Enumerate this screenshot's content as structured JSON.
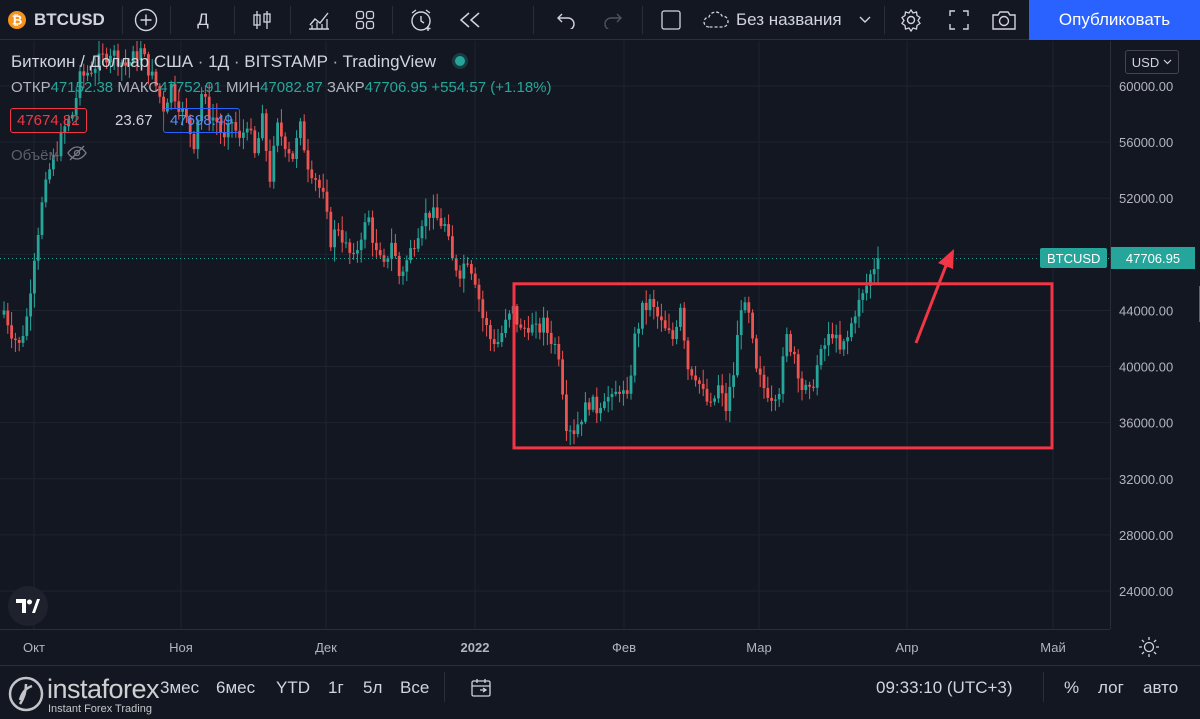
{
  "toolbar": {
    "symbol": "BTCUSD",
    "interval": "Д",
    "layout_name": "Без названия",
    "publish_label": "Опубликовать"
  },
  "legend": {
    "title": "Биткоин / Доллар США",
    "interval": "1Д",
    "exchange": "BITSTAMP",
    "source": "TradingView",
    "open_label": "ОТКР",
    "open": "47152.38",
    "high_label": "МАКС",
    "high": "47752.91",
    "low_label": "МИН",
    "low": "47082.87",
    "close_label": "ЗАКР",
    "close": "47706.95",
    "change": "+554.57 (+1.18%)",
    "bid": "47674.82",
    "spread": "23.67",
    "ask": "47698.49",
    "volume_label": "Объём"
  },
  "price_axis": {
    "currency": "USD",
    "ticks": [
      "60000.00",
      "56000.00",
      "52000.00",
      "48000.00",
      "44000.00",
      "40000.00",
      "36000.00",
      "32000.00",
      "28000.00",
      "24000.00"
    ],
    "last_symbol": "BTCUSD",
    "last_price": "47706.95"
  },
  "time_axis": {
    "labels": [
      "Окт",
      "Ноя",
      "Дек",
      "2022",
      "Фев",
      "Мар",
      "Апр",
      "Май"
    ]
  },
  "bottom_bar": {
    "ranges": [
      "3мес",
      "6мес",
      "YTD",
      "1г",
      "5л",
      "Все"
    ],
    "time": "09:33:10 (UTC+3)",
    "percent": "%",
    "log": "лог",
    "auto": "авто",
    "watermark": "instaforex",
    "watermark_sub": "Instant Forex Trading"
  },
  "colors": {
    "up": "#26a69a",
    "down": "#ef5350",
    "annotation": "#f23645",
    "accent": "#2962ff",
    "symbol_badge": "#f7931a"
  },
  "chart_data": {
    "type": "candlestick",
    "ylim": [
      21000,
      63000
    ],
    "last_price": 47706.95,
    "annotation": {
      "type": "rectangle",
      "price_low": 34200,
      "price_high": 45900,
      "arrow": "up"
    },
    "series": [
      {
        "name": "BTCUSD",
        "anchors": [
          {
            "day": 0,
            "close": 44000
          },
          {
            "day": 2,
            "close": 42500
          },
          {
            "day": 4,
            "close": 41500
          },
          {
            "day": 6,
            "close": 43500
          },
          {
            "day": 8,
            "close": 48000
          },
          {
            "day": 10,
            "close": 51500
          },
          {
            "day": 12,
            "close": 54000
          },
          {
            "day": 14,
            "close": 55500
          },
          {
            "day": 16,
            "close": 57000
          },
          {
            "day": 18,
            "close": 58000
          },
          {
            "day": 20,
            "close": 60500
          },
          {
            "day": 24,
            "close": 61500
          },
          {
            "day": 28,
            "close": 62500
          },
          {
            "day": 32,
            "close": 61500
          },
          {
            "day": 36,
            "close": 62500
          },
          {
            "day": 40,
            "close": 60000
          },
          {
            "day": 42,
            "close": 58500
          },
          {
            "day": 44,
            "close": 60000
          },
          {
            "day": 48,
            "close": 57500
          },
          {
            "day": 50,
            "close": 56000
          },
          {
            "day": 52,
            "close": 59500
          },
          {
            "day": 54,
            "close": 58000
          },
          {
            "day": 56,
            "close": 57500
          },
          {
            "day": 58,
            "close": 56000
          },
          {
            "day": 60,
            "close": 57500
          },
          {
            "day": 62,
            "close": 56000
          },
          {
            "day": 64,
            "close": 57500
          },
          {
            "day": 66,
            "close": 55000
          },
          {
            "day": 68,
            "close": 57500
          },
          {
            "day": 70,
            "close": 53500
          },
          {
            "day": 72,
            "close": 57000
          },
          {
            "day": 74,
            "close": 56000
          },
          {
            "day": 76,
            "close": 55000
          },
          {
            "day": 78,
            "close": 57000
          },
          {
            "day": 80,
            "close": 54500
          },
          {
            "day": 82,
            "close": 53500
          },
          {
            "day": 84,
            "close": 52000
          },
          {
            "day": 86,
            "close": 49000
          },
          {
            "day": 88,
            "close": 50000
          },
          {
            "day": 90,
            "close": 48500
          },
          {
            "day": 92,
            "close": 47500
          },
          {
            "day": 94,
            "close": 49500
          },
          {
            "day": 96,
            "close": 50500
          },
          {
            "day": 98,
            "close": 48000
          },
          {
            "day": 100,
            "close": 47000
          },
          {
            "day": 102,
            "close": 49000
          },
          {
            "day": 104,
            "close": 46500
          },
          {
            "day": 106,
            "close": 47500
          },
          {
            "day": 108,
            "close": 49000
          },
          {
            "day": 110,
            "close": 50500
          },
          {
            "day": 112,
            "close": 51000
          },
          {
            "day": 114,
            "close": 50500
          },
          {
            "day": 116,
            "close": 50000
          },
          {
            "day": 118,
            "close": 47500
          },
          {
            "day": 120,
            "close": 46800
          },
          {
            "day": 122,
            "close": 47800
          },
          {
            "day": 124,
            "close": 46300
          },
          {
            "day": 126,
            "close": 43500
          },
          {
            "day": 128,
            "close": 42000
          },
          {
            "day": 130,
            "close": 41800
          },
          {
            "day": 132,
            "close": 43000
          },
          {
            "day": 134,
            "close": 44000
          },
          {
            "day": 136,
            "close": 42500
          },
          {
            "day": 138,
            "close": 43000
          },
          {
            "day": 140,
            "close": 42500
          },
          {
            "day": 142,
            "close": 43000
          },
          {
            "day": 144,
            "close": 42000
          },
          {
            "day": 146,
            "close": 41000
          },
          {
            "day": 148,
            "close": 36000
          },
          {
            "day": 150,
            "close": 35500
          },
          {
            "day": 152,
            "close": 36500
          },
          {
            "day": 154,
            "close": 37500
          },
          {
            "day": 156,
            "close": 37000
          },
          {
            "day": 158,
            "close": 38000
          },
          {
            "day": 160,
            "close": 37500
          },
          {
            "day": 162,
            "close": 38500
          },
          {
            "day": 164,
            "close": 37500
          },
          {
            "day": 166,
            "close": 42000
          },
          {
            "day": 168,
            "close": 44000
          },
          {
            "day": 170,
            "close": 44500
          },
          {
            "day": 172,
            "close": 43500
          },
          {
            "day": 174,
            "close": 42500
          },
          {
            "day": 176,
            "close": 42000
          },
          {
            "day": 178,
            "close": 44500
          },
          {
            "day": 180,
            "close": 40000
          },
          {
            "day": 182,
            "close": 39500
          },
          {
            "day": 184,
            "close": 38000
          },
          {
            "day": 186,
            "close": 37000
          },
          {
            "day": 188,
            "close": 38500
          },
          {
            "day": 190,
            "close": 37000
          },
          {
            "day": 192,
            "close": 39500
          },
          {
            "day": 194,
            "close": 44500
          },
          {
            "day": 196,
            "close": 43500
          },
          {
            "day": 198,
            "close": 39500
          },
          {
            "day": 200,
            "close": 38500
          },
          {
            "day": 202,
            "close": 38000
          },
          {
            "day": 204,
            "close": 38500
          },
          {
            "day": 206,
            "close": 42000
          },
          {
            "day": 208,
            "close": 41000
          },
          {
            "day": 210,
            "close": 38500
          },
          {
            "day": 212,
            "close": 38000
          },
          {
            "day": 214,
            "close": 40000
          },
          {
            "day": 216,
            "close": 41500
          },
          {
            "day": 218,
            "close": 42500
          },
          {
            "day": 220,
            "close": 41000
          },
          {
            "day": 222,
            "close": 42000
          },
          {
            "day": 224,
            "close": 44000
          },
          {
            "day": 226,
            "close": 45000
          },
          {
            "day": 228,
            "close": 46500
          },
          {
            "day": 229,
            "close": 47200
          },
          {
            "day": 230,
            "close": 47706.95
          }
        ]
      }
    ]
  }
}
